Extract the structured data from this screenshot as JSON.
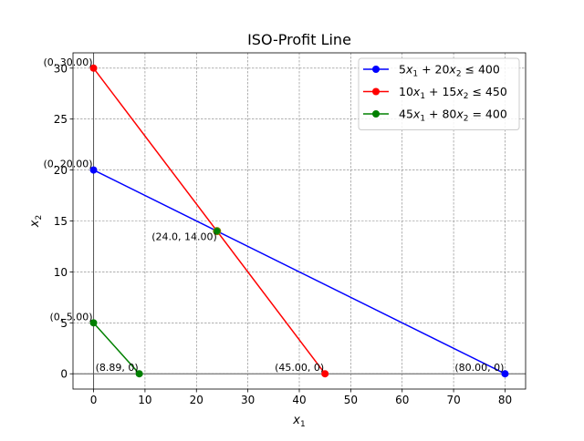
{
  "chart_data": {
    "type": "line",
    "title": "ISO-Profit Line",
    "xlabel_base": "x",
    "xlabel_sub": "1",
    "ylabel_base": "x",
    "ylabel_sub": "2",
    "xlim": [
      -4,
      84
    ],
    "ylim": [
      -1.5,
      31.5
    ],
    "x_ticks": [
      0,
      10,
      20,
      30,
      40,
      50,
      60,
      70,
      80
    ],
    "y_ticks": [
      0,
      5,
      10,
      15,
      20,
      25,
      30
    ],
    "grid": true,
    "legend_position": "top-right",
    "series": [
      {
        "name": "5x1 + 20x2 ≤ 400",
        "legend": {
          "c1": "5",
          "c2": "20",
          "op": "≤",
          "rhs": "400"
        },
        "color": "#0000ff",
        "points": [
          [
            0,
            20
          ],
          [
            80,
            0
          ]
        ]
      },
      {
        "name": "10x1 + 15x2 ≤ 450",
        "legend": {
          "c1": "10",
          "c2": "15",
          "op": "≤",
          "rhs": "450"
        },
        "color": "#ff0000",
        "points": [
          [
            0,
            30
          ],
          [
            45,
            0
          ]
        ]
      },
      {
        "name": "45x1 + 80x2 = 400",
        "legend": {
          "c1": "45",
          "c2": "80",
          "op": "=",
          "rhs": "400"
        },
        "color": "#008000",
        "points": [
          [
            0,
            5
          ],
          [
            8.89,
            0
          ]
        ]
      }
    ],
    "intersection": {
      "x": 24,
      "y": 14,
      "color": "#008000",
      "edge": "#808000"
    },
    "annotations": [
      {
        "text": "(0, 30.00)",
        "x": 0,
        "y": 30,
        "ha": "right"
      },
      {
        "text": "(0, 20.00)",
        "x": 0,
        "y": 20,
        "ha": "right"
      },
      {
        "text": "(0, 5.00)",
        "x": 0,
        "y": 5,
        "ha": "right"
      },
      {
        "text": "(8.89, 0)",
        "x": 8.89,
        "y": 0,
        "ha": "right"
      },
      {
        "text": "(45.00, 0)",
        "x": 45,
        "y": 0,
        "ha": "right"
      },
      {
        "text": "(80.00, 0)",
        "x": 80,
        "y": 0,
        "ha": "right"
      },
      {
        "text": "(24.0, 14.00)",
        "x": 24,
        "y": 14,
        "ha": "right-below"
      }
    ]
  }
}
